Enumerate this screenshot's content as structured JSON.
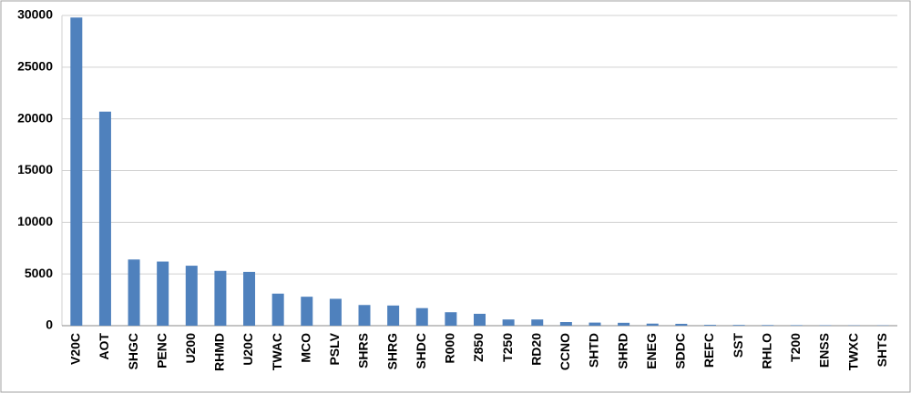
{
  "chart_data": {
    "type": "bar",
    "categories": [
      "V20C",
      "AOT",
      "SHGC",
      "PENC",
      "U200",
      "RHMD",
      "U20C",
      "TWAC",
      "MCO",
      "PSLV",
      "SHRS",
      "SHRG",
      "SHDC",
      "R000",
      "Z850",
      "T250",
      "RD20",
      "CCNO",
      "SHTD",
      "SHRD",
      "ENEG",
      "SDDC",
      "REFC",
      "SST",
      "RHLO",
      "T200",
      "ENSS",
      "TWXC",
      "SHTS"
    ],
    "values": [
      29800,
      20700,
      6400,
      6200,
      5800,
      5300,
      5200,
      3100,
      2800,
      2600,
      2000,
      1950,
      1700,
      1300,
      1150,
      600,
      600,
      350,
      300,
      280,
      200,
      180,
      80,
      70,
      60,
      50,
      40,
      30,
      30
    ],
    "color": "#4f81bd",
    "ylim": [
      0,
      30000
    ],
    "yticks": [
      0,
      5000,
      10000,
      15000,
      20000,
      25000,
      30000
    ],
    "grid": true
  }
}
